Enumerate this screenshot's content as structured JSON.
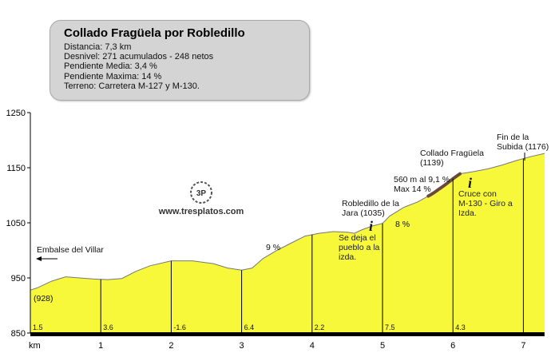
{
  "info": {
    "title": "Collado Fragüela por Robledillo",
    "lines": [
      "Distancia: 7,3 km",
      "Desnivel: 271 acumulados - 248 netos",
      "Pendiente Media: 3,4 %",
      "Pendiente Maxima: 14 %",
      "Terreno: Carretera M-127 y M-130."
    ]
  },
  "watermark": {
    "logo_text": "3P",
    "site": "www.tresplatos.com"
  },
  "colors": {
    "fill": "#f8f83a",
    "steep": "#6b4a3c",
    "grid": "#000000"
  },
  "chart_data": {
    "type": "area",
    "xlabel": "km",
    "ylabel": "",
    "xlim": [
      0,
      7.3
    ],
    "ylim": [
      850,
      1250
    ],
    "y_ticks": [
      850,
      950,
      1050,
      1150,
      1250
    ],
    "x_ticks": [
      1,
      2,
      3,
      4,
      5,
      6,
      7
    ],
    "x": [
      0,
      0.1,
      0.3,
      0.5,
      0.7,
      0.9,
      1.1,
      1.3,
      1.5,
      1.7,
      2.0,
      2.3,
      2.6,
      2.8,
      3.0,
      3.15,
      3.3,
      3.5,
      3.7,
      3.9,
      4.1,
      4.3,
      4.5,
      4.6,
      4.7,
      4.85,
      5.0,
      5.1,
      5.3,
      5.5,
      5.7,
      5.9,
      6.0,
      6.1,
      6.3,
      6.5,
      6.7,
      6.9,
      7.1,
      7.3
    ],
    "y": [
      928,
      932,
      944,
      952,
      950,
      948,
      947,
      949,
      962,
      972,
      981,
      981,
      976,
      968,
      964,
      968,
      985,
      1000,
      1013,
      1026,
      1031,
      1034,
      1033,
      1031,
      1037,
      1044,
      1049,
      1062,
      1078,
      1088,
      1102,
      1120,
      1130,
      1139,
      1143,
      1148,
      1155,
      1163,
      1170,
      1176
    ],
    "steep_section": [
      5.65,
      6.1
    ],
    "section_markers": [
      {
        "km": 0,
        "grade": "1.5"
      },
      {
        "km": 1,
        "grade": "3.6"
      },
      {
        "km": 2,
        "grade": "-1.6"
      },
      {
        "km": 3,
        "grade": "6.4"
      },
      {
        "km": 4,
        "grade": "2.2"
      },
      {
        "km": 5,
        "grade": "7.5"
      },
      {
        "km": 6,
        "grade": "4.3"
      },
      {
        "km": 7,
        "grade": ""
      }
    ],
    "annotations": {
      "start": "(928)",
      "embalse": "Embalse del Villar",
      "grade_9": "9 %",
      "grade_8": "8 %",
      "robledillo": [
        "Robledillo de la",
        "Jara (1035)"
      ],
      "pueblo": [
        "Se deja el",
        "pueblo a la",
        "izda."
      ],
      "max": [
        "560 m al 9,1 %",
        "Max 14 %"
      ],
      "collado": [
        "Collado Fragüela",
        "(1139)"
      ],
      "cruce": [
        "Cruce con",
        "M-130 - Giro a",
        "Izda."
      ],
      "fin": [
        "Fin de la",
        "Subida (1176)"
      ]
    }
  }
}
